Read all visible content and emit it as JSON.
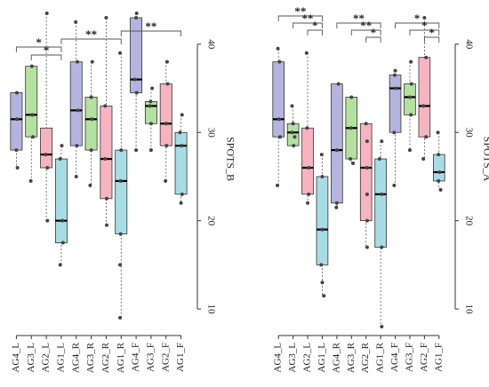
{
  "chart_data": [
    {
      "type": "box",
      "ylabel": "SPOTS_B",
      "yticks": [
        10,
        20,
        30,
        40
      ],
      "ylim": [
        8,
        44
      ],
      "categories": [
        "AG4_L",
        "AG3_L",
        "AG2_L",
        "AG1_L",
        "AG4_R",
        "AG3_R",
        "AG2_R",
        "AG1_R",
        "AG4_F",
        "AG3_F",
        "AG2_F",
        "AG1_F"
      ],
      "colors": [
        "#b4b4de",
        "#b4e0a0",
        "#f6b4c0",
        "#a8dce4",
        "#b4b4de",
        "#b4e0a0",
        "#f6b4c0",
        "#a8dce4",
        "#b4b4de",
        "#b4e0a0",
        "#f6b4c0",
        "#a8dce4"
      ],
      "boxes": [
        {
          "whisker_low": 26,
          "q1": 28,
          "median": 31.5,
          "q3": 34.5,
          "whisker_high": 34.5,
          "points": [
            26,
            28,
            31.5,
            34.5
          ]
        },
        {
          "whisker_low": 24.5,
          "q1": 29.5,
          "median": 32,
          "q3": 37.5,
          "whisker_high": 37.5,
          "points": [
            24.5,
            29.5,
            32,
            37.5
          ]
        },
        {
          "whisker_low": 20,
          "q1": 26,
          "median": 27.5,
          "q3": 30.5,
          "whisker_high": 43.5,
          "points": [
            20,
            26,
            27.5,
            43.5
          ]
        },
        {
          "whisker_low": 15,
          "q1": 17.5,
          "median": 20,
          "q3": 27,
          "whisker_high": 28.5,
          "points": [
            15,
            17.5,
            20,
            27,
            28.5
          ]
        },
        {
          "whisker_low": 25,
          "q1": 28.5,
          "median": 32.5,
          "q3": 38,
          "whisker_high": 42.5,
          "points": [
            25,
            28.5,
            32.5,
            38,
            42.5
          ]
        },
        {
          "whisker_low": 24,
          "q1": 28,
          "median": 31.5,
          "q3": 34,
          "whisker_high": 38,
          "points": [
            24,
            28,
            31.5,
            34,
            38
          ]
        },
        {
          "whisker_low": 19.5,
          "q1": 22.5,
          "median": 27,
          "q3": 33,
          "whisker_high": 43,
          "points": [
            19.5,
            22.5,
            27,
            33,
            43
          ]
        },
        {
          "whisker_low": 9,
          "q1": 18.5,
          "median": 24.5,
          "q3": 28,
          "whisker_high": 39,
          "points": [
            9,
            15,
            18.5,
            24.5,
            28,
            39
          ]
        },
        {
          "whisker_low": 28,
          "q1": 34.5,
          "median": 36,
          "q3": 43,
          "whisker_high": 43.5,
          "points": [
            28,
            34.5,
            36,
            43,
            43.5
          ]
        },
        {
          "whisker_low": 28,
          "q1": 31,
          "median": 33,
          "q3": 33.5,
          "whisker_high": 35,
          "points": [
            28,
            31,
            33,
            33.5,
            35
          ]
        },
        {
          "whisker_low": 24.5,
          "q1": 28.5,
          "median": 31,
          "q3": 35.5,
          "whisker_high": 38,
          "points": [
            24.5,
            28.5,
            31,
            35.5,
            38
          ]
        },
        {
          "whisker_low": 22,
          "q1": 23,
          "median": 28.5,
          "q3": 30,
          "whisker_high": 32,
          "points": [
            22,
            23,
            28.5,
            30,
            32
          ]
        }
      ],
      "brackets": [
        {
          "from": 0,
          "to": 3,
          "level": 1,
          "label": "*"
        },
        {
          "from": 1,
          "to": 3,
          "level": 0,
          "label": "*"
        },
        {
          "from": 3,
          "to": 7,
          "level": 2,
          "label": "**"
        },
        {
          "from": 7,
          "to": 11,
          "level": 3,
          "label": "**"
        }
      ]
    },
    {
      "type": "box",
      "ylabel": "SPOTS_A",
      "yticks": [
        10,
        20,
        30,
        40
      ],
      "ylim": [
        8,
        44
      ],
      "categories": [
        "AG4_L",
        "AG3_L",
        "AG2_L",
        "AG1_L",
        "AG4_R",
        "AG3_R",
        "AG2_R",
        "AG1_R",
        "AG4_F",
        "AG3_F",
        "AG2_F",
        "AG1_F"
      ],
      "colors": [
        "#b4b4de",
        "#b4e0a0",
        "#f6b4c0",
        "#a8dce4",
        "#b4b4de",
        "#b4e0a0",
        "#f6b4c0",
        "#a8dce4",
        "#b4b4de",
        "#b4e0a0",
        "#f6b4c0",
        "#a8dce4"
      ],
      "boxes": [
        {
          "whisker_low": 24,
          "q1": 29.5,
          "median": 31.5,
          "q3": 38,
          "whisker_high": 39.5,
          "points": [
            24,
            29.5,
            31.5,
            38,
            39.5
          ]
        },
        {
          "whisker_low": 28.5,
          "q1": 28.5,
          "median": 30,
          "q3": 31,
          "whisker_high": 33,
          "points": [
            28.5,
            29.5,
            30,
            31,
            33
          ]
        },
        {
          "whisker_low": 22,
          "q1": 23,
          "median": 26,
          "q3": 30.5,
          "whisker_high": 39,
          "points": [
            22,
            23,
            26,
            30.5,
            39
          ]
        },
        {
          "whisker_low": 11.5,
          "q1": 15,
          "median": 19,
          "q3": 25,
          "whisker_high": 27.5,
          "points": [
            11.5,
            13,
            15,
            19,
            25,
            27.5
          ]
        },
        {
          "whisker_low": 21.5,
          "q1": 22,
          "median": 28,
          "q3": 35.5,
          "whisker_high": 35.5,
          "points": [
            21.5,
            22,
            28,
            35.5
          ]
        },
        {
          "whisker_low": 26.5,
          "q1": 27,
          "median": 30.5,
          "q3": 34,
          "whisker_high": 34,
          "points": [
            26.5,
            27,
            30.5,
            34
          ]
        },
        {
          "whisker_low": 17,
          "q1": 20,
          "median": 26,
          "q3": 31,
          "whisker_high": 31,
          "points": [
            17,
            20,
            23,
            26,
            29,
            31
          ]
        },
        {
          "whisker_low": 8,
          "q1": 17,
          "median": 23,
          "q3": 27,
          "whisker_high": 29,
          "points": [
            8,
            17,
            23,
            27,
            29
          ]
        },
        {
          "whisker_low": 24,
          "q1": 30,
          "median": 35,
          "q3": 36.5,
          "whisker_high": 37,
          "points": [
            24,
            30,
            35,
            36.5,
            37
          ]
        },
        {
          "whisker_low": 28,
          "q1": 32,
          "median": 34,
          "q3": 35.5,
          "whisker_high": 38,
          "points": [
            28,
            32,
            34,
            35.5,
            38
          ]
        },
        {
          "whisker_low": 27,
          "q1": 29.5,
          "median": 33,
          "q3": 38.5,
          "whisker_high": 43,
          "points": [
            27,
            29.5,
            33,
            38.5,
            43
          ]
        },
        {
          "whisker_low": 23.5,
          "q1": 24.5,
          "median": 25.5,
          "q3": 27.5,
          "whisker_high": 30,
          "points": [
            23.5,
            24.5,
            25.5,
            27.5,
            30
          ]
        }
      ],
      "brackets": [
        {
          "from": 0,
          "to": 3,
          "level": 3,
          "label": "**"
        },
        {
          "from": 1,
          "to": 3,
          "level": 2,
          "label": "**"
        },
        {
          "from": 2,
          "to": 3,
          "level": 1,
          "label": "*"
        },
        {
          "from": 4,
          "to": 7,
          "level": 2,
          "label": "**"
        },
        {
          "from": 5,
          "to": 7,
          "level": 1,
          "label": "**"
        },
        {
          "from": 6,
          "to": 7,
          "level": 0,
          "label": "*"
        },
        {
          "from": 8,
          "to": 11,
          "level": 2,
          "label": "*"
        },
        {
          "from": 9,
          "to": 11,
          "level": 1,
          "label": "*"
        },
        {
          "from": 10,
          "to": 11,
          "level": 0,
          "label": "*"
        }
      ]
    }
  ]
}
